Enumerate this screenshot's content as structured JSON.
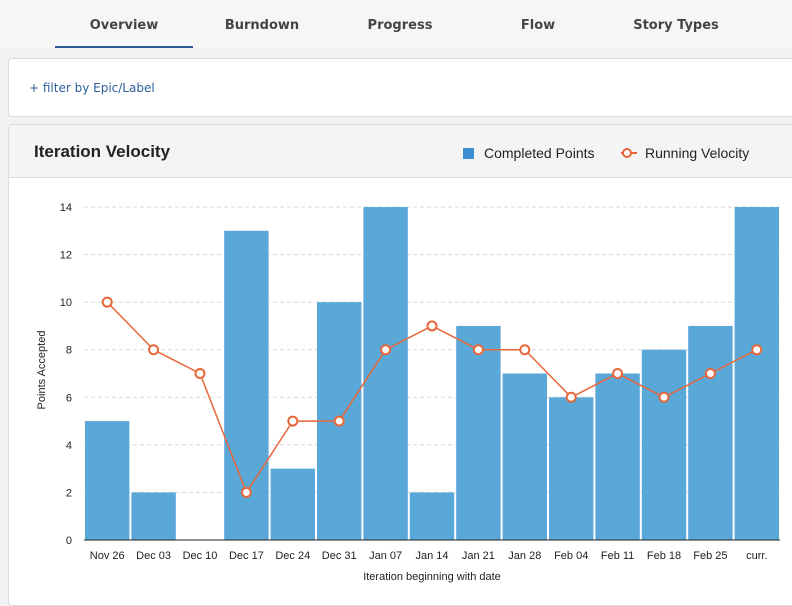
{
  "tabs": [
    {
      "label": "Overview",
      "active": true
    },
    {
      "label": "Burndown",
      "active": false
    },
    {
      "label": "Progress",
      "active": false
    },
    {
      "label": "Flow",
      "active": false
    },
    {
      "label": "Story Types",
      "active": false
    }
  ],
  "filter": {
    "label": "+ filter by Epic/Label"
  },
  "panel": {
    "title": "Iteration Velocity"
  },
  "colors": {
    "bar": "#5aa8d8",
    "line": "#e8673a",
    "legend_bar": "#3d8fd1",
    "active_tab": "#2d5a96"
  },
  "chart_data": {
    "type": "bar",
    "title": "Iteration Velocity",
    "xlabel": "Iteration beginning with date",
    "ylabel": "Points Accepted",
    "ylim": [
      0,
      14
    ],
    "yticks": [
      0,
      2,
      4,
      6,
      8,
      10,
      12,
      14
    ],
    "grid": true,
    "legend_position": "top-right",
    "categories": [
      "Nov 26",
      "Dec 03",
      "Dec 10",
      "Dec 17",
      "Dec 24",
      "Dec 31",
      "Jan 07",
      "Jan 14",
      "Jan 21",
      "Jan 28",
      "Feb 04",
      "Feb 11",
      "Feb 18",
      "Feb 25",
      "curr."
    ],
    "series": [
      {
        "name": "Completed Points",
        "type": "bar",
        "values": [
          5,
          2,
          0,
          13,
          3,
          10,
          14,
          2,
          9,
          7,
          6,
          7,
          8,
          9,
          14
        ]
      },
      {
        "name": "Running Velocity",
        "type": "line",
        "values": [
          10,
          8,
          7,
          2,
          5,
          5,
          8,
          9,
          8,
          8,
          6,
          7,
          6,
          7,
          8
        ]
      }
    ]
  }
}
